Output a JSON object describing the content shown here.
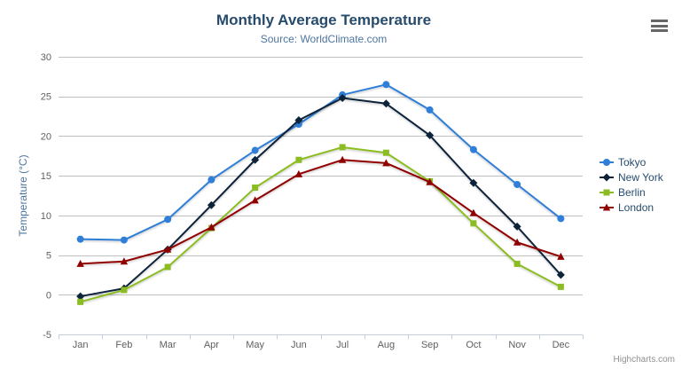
{
  "chart": {
    "title": "Monthly Average Temperature",
    "subtitle": "Source: WorldClimate.com",
    "credits": "Highcharts.com"
  },
  "chart_data": {
    "type": "line",
    "title": "Monthly Average Temperature",
    "subtitle": "Source: WorldClimate.com",
    "categories": [
      "Jan",
      "Feb",
      "Mar",
      "Apr",
      "May",
      "Jun",
      "Jul",
      "Aug",
      "Sep",
      "Oct",
      "Nov",
      "Dec"
    ],
    "series": [
      {
        "name": "Tokyo",
        "color": "#2f7ed8",
        "marker": "circle",
        "values": [
          7.0,
          6.9,
          9.5,
          14.5,
          18.2,
          21.5,
          25.2,
          26.5,
          23.3,
          18.3,
          13.9,
          9.6
        ]
      },
      {
        "name": "New York",
        "color": "#0d233a",
        "marker": "diamond",
        "values": [
          -0.2,
          0.8,
          5.7,
          11.3,
          17.0,
          22.0,
          24.8,
          24.1,
          20.1,
          14.1,
          8.6,
          2.5
        ]
      },
      {
        "name": "Berlin",
        "color": "#8bbc21",
        "marker": "square",
        "values": [
          -0.9,
          0.6,
          3.5,
          8.4,
          13.5,
          17.0,
          18.6,
          17.9,
          14.3,
          9.0,
          3.9,
          1.0
        ]
      },
      {
        "name": "London",
        "color": "#910000",
        "marker": "triangle",
        "values": [
          3.9,
          4.2,
          5.7,
          8.5,
          11.9,
          15.2,
          17.0,
          16.6,
          14.2,
          10.3,
          6.6,
          4.8
        ]
      }
    ],
    "xlabel": "",
    "ylabel": "Temperature (°C)",
    "ylim": [
      -5,
      30
    ],
    "ytick_step": 5,
    "grid": true,
    "legend_position": "right"
  },
  "colors": {
    "title": "#274b6d",
    "subtitle": "#4d759e",
    "axis_label": "#606060",
    "axis_title": "#4d759e",
    "gridline": "#c0c0c0",
    "axis_line": "#c0d0e0",
    "legend_text": "#274b6d",
    "credits": "#909090",
    "burger": "#666666"
  }
}
